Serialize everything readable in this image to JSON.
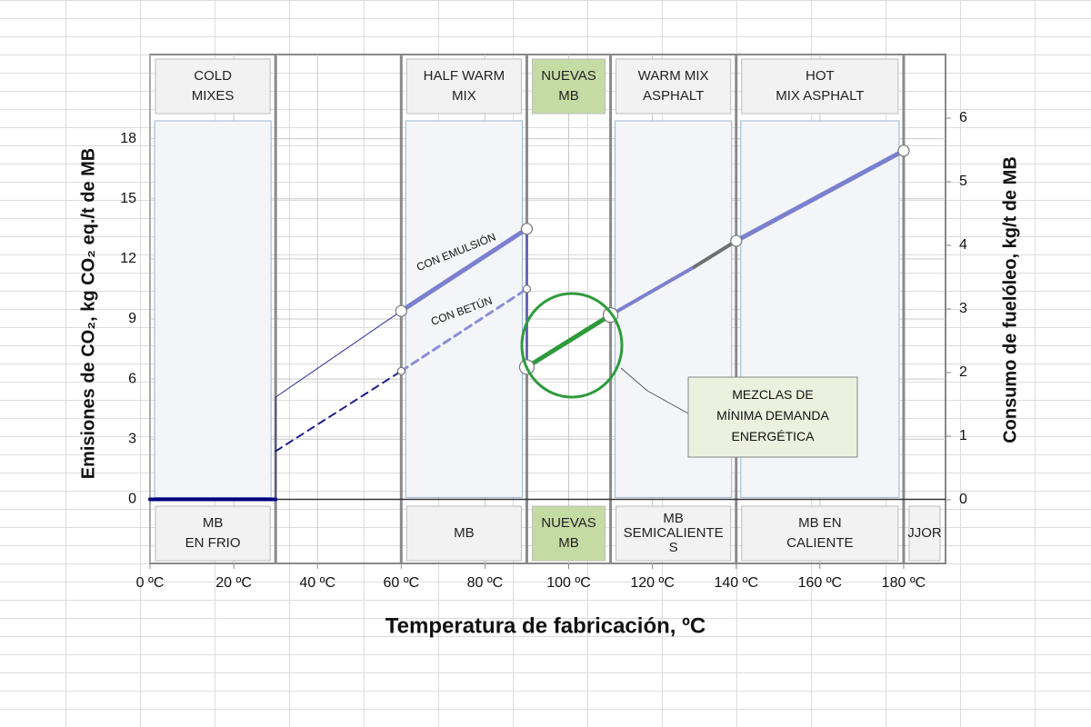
{
  "chart_data": {
    "type": "line",
    "x_label": "Temperatura de fabricación, ºC",
    "y_label": "Emisiones de CO₂, kg CO₂ eq./t de MB",
    "y2_label": "Consumo de fuelóleo, kg/t de MB",
    "xlim": [
      0,
      190
    ],
    "xticks": [
      {
        "value": 0,
        "label": "0 ºC"
      },
      {
        "value": 20,
        "label": "20 ºC"
      },
      {
        "value": 40,
        "label": "40 ºC"
      },
      {
        "value": 60,
        "label": "60 ºC"
      },
      {
        "value": 80,
        "label": "80 ºC"
      },
      {
        "value": 100,
        "label": "100 ºC"
      },
      {
        "value": 120,
        "label": "120 ºC"
      },
      {
        "value": 140,
        "label": "140 ºC"
      },
      {
        "value": 160,
        "label": "160 ºC"
      },
      {
        "value": 180,
        "label": "180 ºC"
      }
    ],
    "ylim": [
      -3.2,
      22.2
    ],
    "yticks": [
      0,
      3,
      6,
      9,
      12,
      15,
      18
    ],
    "y2lim": [
      -1,
      7
    ],
    "y2ticks": [
      0,
      1,
      2,
      3,
      4,
      5,
      6
    ],
    "grid": true,
    "zones": [
      {
        "from": 0,
        "to": 30,
        "top": [
          "COLD",
          "MIXES"
        ],
        "bottom": [
          "MB",
          "EN FRIO"
        ],
        "panel": true,
        "highlight": false
      },
      {
        "from": 30,
        "to": 60,
        "top": [],
        "bottom": [],
        "panel": false,
        "highlight": false
      },
      {
        "from": 60,
        "to": 90,
        "top": [
          "HALF WARM",
          "MIX"
        ],
        "bottom": [
          "MB"
        ],
        "panel": true,
        "highlight": false
      },
      {
        "from": 90,
        "to": 110,
        "top": [
          "NUEVAS",
          "MB"
        ],
        "bottom": [
          "NUEVAS",
          "MB"
        ],
        "panel": false,
        "highlight": true
      },
      {
        "from": 110,
        "to": 140,
        "top": [
          "WARM MIX",
          "ASPHALT"
        ],
        "bottom": [
          "MB",
          "SEMICALIENTE",
          "S"
        ],
        "panel": true,
        "highlight": false
      },
      {
        "from": 140,
        "to": 180,
        "top": [
          "HOT",
          "MIX ASPHALT"
        ],
        "bottom": [
          "MB EN",
          "CALIENTE"
        ],
        "panel": true,
        "highlight": false
      },
      {
        "from": 180,
        "to": 190,
        "top": [],
        "bottom": [
          "JJOR"
        ],
        "panel": false,
        "highlight": false
      }
    ],
    "series": [
      {
        "color": "#00007f",
        "width": 4,
        "dash": false,
        "x": [
          0,
          30
        ],
        "values": [
          0,
          0
        ]
      },
      {
        "color": "#2b2b9a",
        "width": 1,
        "dash": false,
        "x": [
          30,
          30,
          60
        ],
        "values": [
          0,
          5.1,
          9.4
        ]
      },
      {
        "color": "#7b7fcf",
        "width": 5,
        "dash": false,
        "x": [
          60,
          90
        ],
        "values": [
          9.4,
          13.5
        ]
      },
      {
        "color": "#5a5ab8",
        "width": 2,
        "dash": false,
        "x": [
          90,
          90
        ],
        "values": [
          13.5,
          6.6
        ]
      },
      {
        "color": "#2e9a3c",
        "width": 5,
        "dash": false,
        "x": [
          90,
          110
        ],
        "values": [
          6.6,
          9.2
        ]
      },
      {
        "color": "#7b7fcf",
        "width": 4,
        "dash": false,
        "x": [
          110,
          130
        ],
        "values": [
          9.2,
          11.6
        ]
      },
      {
        "color": "#707070",
        "width": 4,
        "dash": false,
        "x": [
          130,
          140
        ],
        "values": [
          11.6,
          12.9
        ]
      },
      {
        "color": "#7b7fcf",
        "width": 5,
        "dash": false,
        "x": [
          140,
          180
        ],
        "values": [
          12.9,
          17.4
        ]
      },
      {
        "color": "#1f1f8f",
        "width": 2,
        "dash": true,
        "x": [
          30,
          60
        ],
        "values": [
          2.4,
          6.4
        ]
      },
      {
        "color": "#8c8fd6",
        "width": 3,
        "dash": true,
        "x": [
          60,
          90
        ],
        "values": [
          6.4,
          10.5
        ]
      }
    ],
    "points": {
      "x": [
        60,
        90,
        90,
        110,
        140,
        180,
        60,
        90
      ],
      "values": [
        9.4,
        13.5,
        6.6,
        9.2,
        12.9,
        17.4,
        6.4,
        10.5
      ],
      "sizes": [
        6,
        6,
        8,
        8,
        6,
        6,
        4,
        4
      ]
    },
    "annotations": {
      "emulsion": "CON EMULSIÓN",
      "betun": "CON BETÚN",
      "callout": [
        "MEZCLAS DE",
        "MÍNIMA DEMANDA",
        "ENERGÉTICA"
      ]
    }
  }
}
